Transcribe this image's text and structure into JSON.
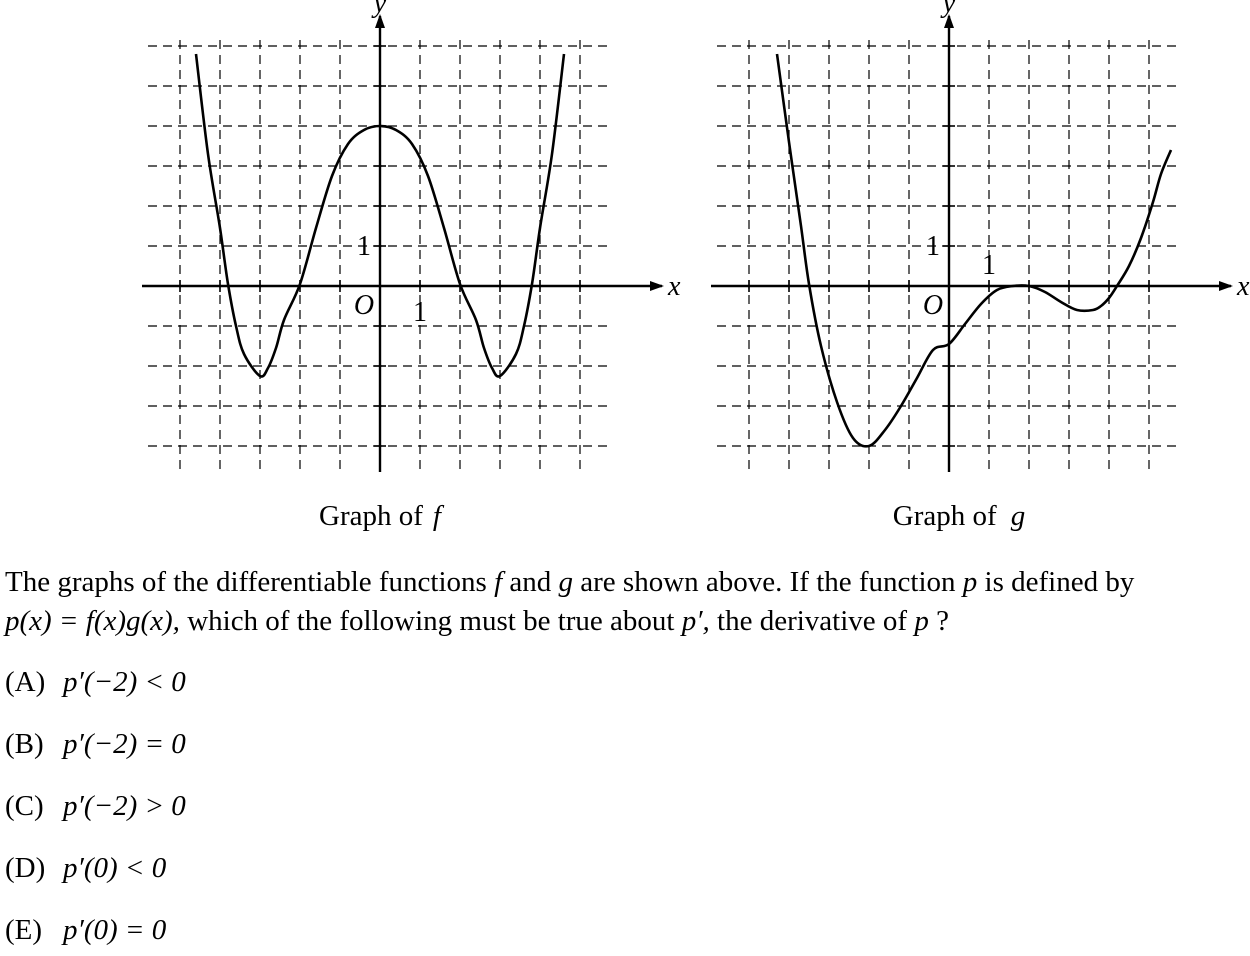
{
  "chart_data": [
    {
      "type": "line",
      "caption_prefix": "Graph of",
      "function_name": "f",
      "xlabel": "x",
      "ylabel": "y",
      "origin_label": "O",
      "x_unit_label": "1",
      "y_unit_label": "1",
      "xlim": [
        -5.5,
        5.5
      ],
      "ylim": [
        -4.5,
        6
      ],
      "grid": true,
      "series": [
        {
          "x": [
            -4.6,
            -4.3,
            -4,
            -3.8,
            -3.6,
            -3.4,
            -3,
            -2.8,
            -2.6,
            -2.4,
            -2,
            -1.6,
            -1.2,
            -0.8,
            -0.4,
            0,
            0.4,
            0.8,
            1.2,
            1.6,
            2,
            2.4,
            2.6,
            2.8,
            3,
            3.4,
            3.6,
            3.8,
            4,
            4.3,
            4.6
          ],
          "y": [
            5.8,
            3.3,
            1.45,
            0.05,
            -1.0,
            -1.7,
            -2.25,
            -2.05,
            -1.55,
            -0.85,
            0.05,
            1.45,
            2.75,
            3.55,
            3.9,
            4.0,
            3.9,
            3.55,
            2.75,
            1.45,
            0.05,
            -0.85,
            -1.55,
            -2.05,
            -2.25,
            -1.7,
            -1.0,
            0.05,
            1.45,
            3.3,
            5.8
          ]
        }
      ]
    },
    {
      "type": "line",
      "caption_prefix": "Graph of",
      "function_name": "g",
      "xlabel": "x",
      "ylabel": "y",
      "origin_label": "O",
      "x_unit_label": "1",
      "y_unit_label": "1",
      "xlim": [
        -5.5,
        5.5
      ],
      "ylim": [
        -4.5,
        6
      ],
      "grid": true,
      "series": [
        {
          "x": [
            -4.3,
            -4.0,
            -3.7,
            -3.5,
            -3.2,
            -2.8,
            -2.4,
            -2.0,
            -1.6,
            -1.2,
            -0.8,
            -0.4,
            0,
            0.4,
            0.8,
            1.2,
            1.6,
            2.0,
            2.4,
            2.8,
            3.2,
            3.6,
            3.8,
            4.0,
            4.2,
            4.5,
            4.8,
            5.1,
            5.3,
            5.55
          ],
          "y": [
            5.8,
            3.6,
            1.5,
            0.05,
            -1.5,
            -2.9,
            -3.8,
            -4.0,
            -3.6,
            -3.0,
            -2.3,
            -1.6,
            -1.45,
            -0.95,
            -0.45,
            -0.1,
            0.0,
            0.0,
            -0.15,
            -0.4,
            -0.6,
            -0.6,
            -0.5,
            -0.3,
            0.0,
            0.5,
            1.2,
            2.1,
            2.8,
            3.4
          ]
        }
      ]
    }
  ],
  "question": {
    "line1": {
      "t1": "The graphs of the differentiable functions",
      "f": "f",
      "t2": "and",
      "g": "g",
      "t3": "are shown above. If the function",
      "p": "p",
      "t4": "is defined by"
    },
    "line2": {
      "def": "p(x) = f(x)g(x),",
      "t1": "which of the following must be true about",
      "pprime": "p′,",
      "t2": "the derivative of",
      "p": "p",
      "end": "?"
    }
  },
  "choices": [
    {
      "letter": "(A)",
      "expr": "p′(−2) < 0"
    },
    {
      "letter": "(B)",
      "expr": "p′(−2) = 0"
    },
    {
      "letter": "(C)",
      "expr": "p′(−2) > 0"
    },
    {
      "letter": "(D)",
      "expr": "p′(0) < 0"
    },
    {
      "letter": "(E)",
      "expr": "p′(0) = 0"
    }
  ]
}
